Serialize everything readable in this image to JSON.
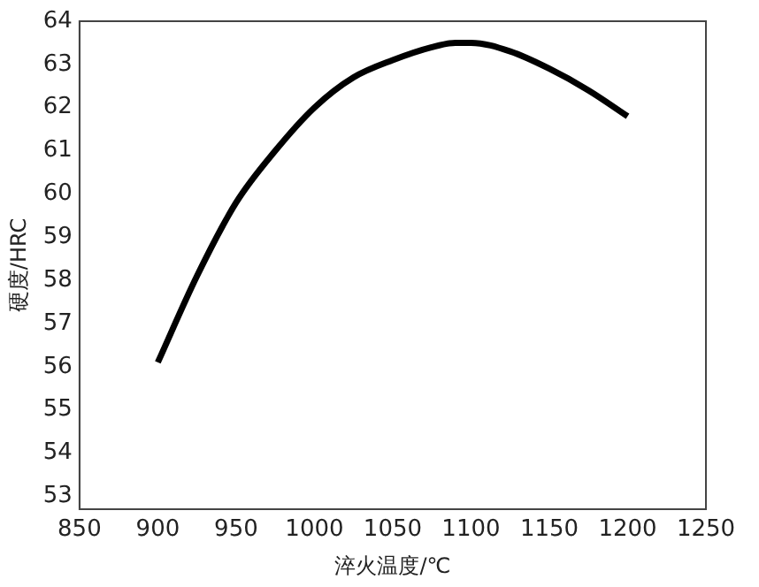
{
  "chart_data": {
    "type": "line",
    "xlabel": "淬火温度/℃",
    "ylabel": "硬度/HRC",
    "x": [
      900,
      925,
      950,
      975,
      1000,
      1025,
      1050,
      1075,
      1090,
      1100,
      1125,
      1150,
      1175,
      1200
    ],
    "series": [
      {
        "color": "#000000",
        "values": [
          56.1,
          58.1,
          59.8,
          61.0,
          62.0,
          62.7,
          63.1,
          63.4,
          63.5,
          63.5,
          63.3,
          62.9,
          62.4,
          61.8
        ]
      }
    ],
    "xlim": [
      850,
      1250
    ],
    "xticks": [
      850,
      900,
      950,
      1000,
      1050,
      1100,
      1150,
      1200,
      1250
    ],
    "ylim": [
      52.7,
      64
    ],
    "yticks": [
      53,
      54,
      55,
      56,
      57,
      58,
      59,
      60,
      61,
      62,
      63,
      64
    ],
    "grid": false,
    "legend": false,
    "marker": "none",
    "line_style": "solid"
  }
}
